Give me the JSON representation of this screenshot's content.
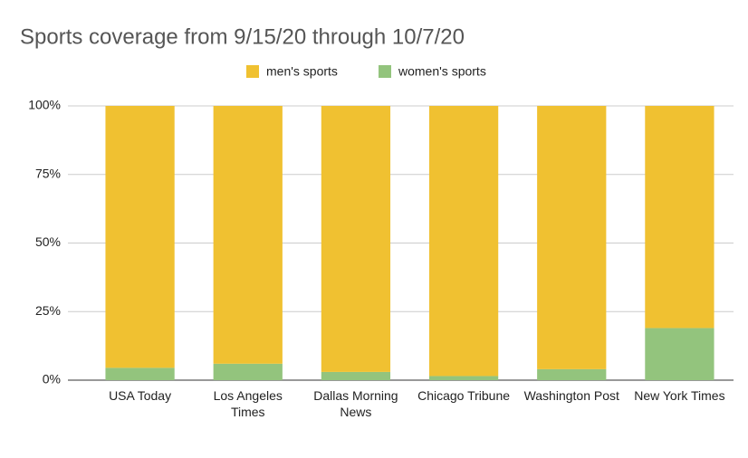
{
  "chart_data": {
    "type": "stacked_bar",
    "title": "Sports coverage from 9/15/20 through 10/7/20",
    "categories": [
      "USA Today",
      "Los Angeles Times",
      "Dallas Morning News",
      "Chicago Tribune",
      "Washington Post",
      "New York Times"
    ],
    "series": [
      {
        "name": "men's sports",
        "color": "#f0c131",
        "values": [
          95.5,
          94,
          97,
          98.5,
          96,
          81
        ]
      },
      {
        "name": "women's sports",
        "color": "#93c47d",
        "values": [
          4.5,
          6,
          3,
          1.5,
          4,
          19
        ]
      }
    ],
    "ylim": [
      0,
      100
    ],
    "yticks": [
      {
        "value": 0,
        "label": "0%"
      },
      {
        "value": 25,
        "label": "25%"
      },
      {
        "value": 50,
        "label": "50%"
      },
      {
        "value": 75,
        "label": "75%"
      },
      {
        "value": 100,
        "label": "100%"
      }
    ],
    "grid": true,
    "legend": "top"
  }
}
